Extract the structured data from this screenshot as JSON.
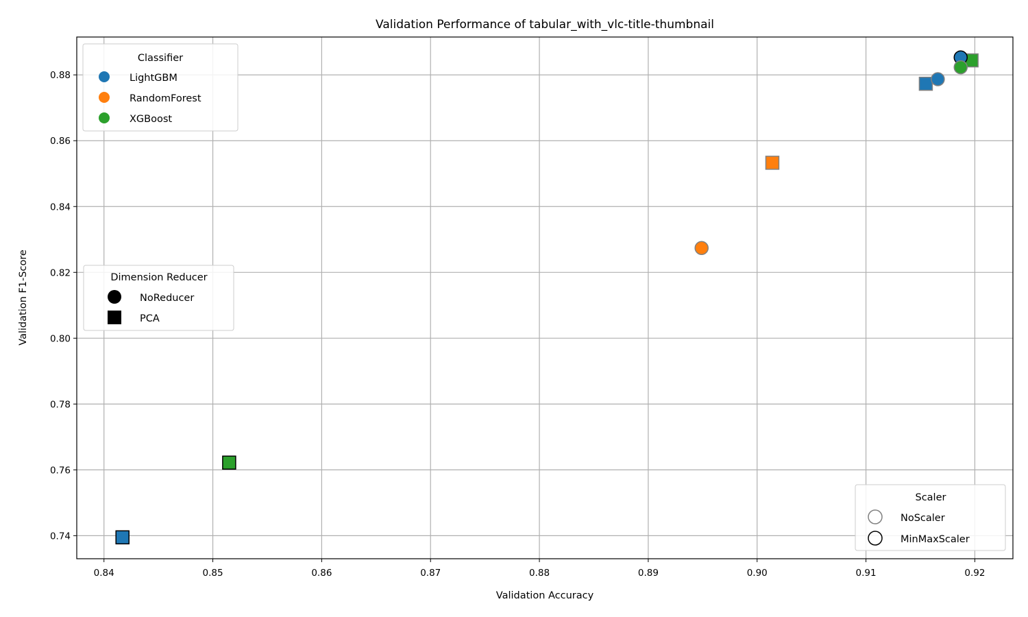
{
  "chart_data": {
    "type": "scatter",
    "title": "Validation Performance of tabular_with_vlc-title-thumbnail",
    "xlabel": "Validation Accuracy",
    "ylabel": "Validation F1-Score",
    "xlim": [
      0.8375,
      0.9235
    ],
    "ylim": [
      0.733,
      0.8915
    ],
    "xticks": [
      0.84,
      0.85,
      0.86,
      0.87,
      0.88,
      0.89,
      0.9,
      0.91,
      0.92
    ],
    "xtick_labels": [
      "0.84",
      "0.85",
      "0.86",
      "0.87",
      "0.88",
      "0.89",
      "0.90",
      "0.91",
      "0.92"
    ],
    "yticks": [
      0.74,
      0.76,
      0.78,
      0.8,
      0.82,
      0.84,
      0.86,
      0.88
    ],
    "ytick_labels": [
      "0.74",
      "0.76",
      "0.78",
      "0.80",
      "0.82",
      "0.84",
      "0.86",
      "0.88"
    ],
    "grid": true,
    "colors": {
      "LightGBM": "#1f77b4",
      "RandomForest": "#ff7f0e",
      "XGBoost": "#2ca02c",
      "NoScaler_edge": "#808080",
      "MinMaxScaler_edge": "#000000"
    },
    "legends": {
      "classifier": {
        "title": "Classifier",
        "placement": "upper-left",
        "entries": [
          "LightGBM",
          "RandomForest",
          "XGBoost"
        ]
      },
      "reducer": {
        "title": "Dimension Reducer",
        "placement": "center-left",
        "entries": [
          "NoReducer",
          "PCA"
        ]
      },
      "scaler": {
        "title": "Scaler",
        "placement": "lower-right",
        "entries": [
          "NoScaler",
          "MinMaxScaler"
        ]
      }
    },
    "points": [
      {
        "x": 0.8417,
        "y": 0.7395,
        "classifier": "LightGBM",
        "reducer": "PCA",
        "scaler": "MinMaxScaler"
      },
      {
        "x": 0.8515,
        "y": 0.7622,
        "classifier": "XGBoost",
        "reducer": "PCA",
        "scaler": "MinMaxScaler"
      },
      {
        "x": 0.8949,
        "y": 0.8274,
        "classifier": "RandomForest",
        "reducer": "NoReducer",
        "scaler": "NoScaler"
      },
      {
        "x": 0.9014,
        "y": 0.8533,
        "classifier": "RandomForest",
        "reducer": "PCA",
        "scaler": "NoScaler"
      },
      {
        "x": 0.9155,
        "y": 0.8773,
        "classifier": "LightGBM",
        "reducer": "PCA",
        "scaler": "NoScaler"
      },
      {
        "x": 0.9166,
        "y": 0.8787,
        "classifier": "LightGBM",
        "reducer": "NoReducer",
        "scaler": "NoScaler"
      },
      {
        "x": 0.9197,
        "y": 0.8844,
        "classifier": "XGBoost",
        "reducer": "PCA",
        "scaler": "NoScaler"
      },
      {
        "x": 0.9187,
        "y": 0.8853,
        "classifier": "LightGBM",
        "reducer": "NoReducer",
        "scaler": "MinMaxScaler"
      },
      {
        "x": 0.9187,
        "y": 0.8823,
        "classifier": "XGBoost",
        "reducer": "NoReducer",
        "scaler": "NoScaler"
      }
    ]
  }
}
